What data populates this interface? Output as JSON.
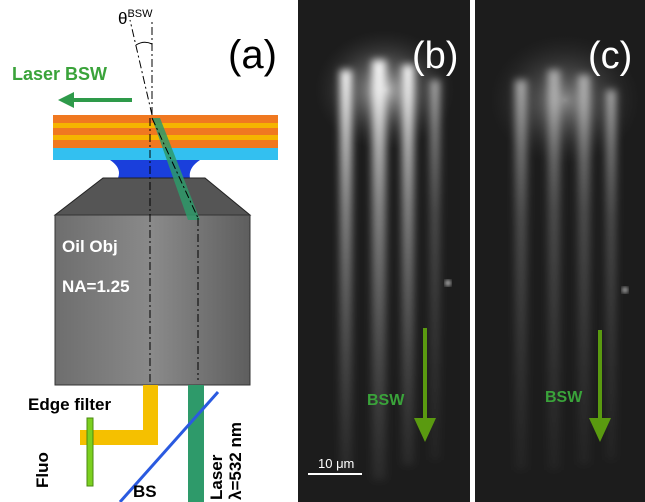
{
  "panel_a": {
    "label": "(a)",
    "angle": {
      "symbol": "θ",
      "superscript": "BSW"
    },
    "laser_bsw": "Laser BSW",
    "objective": {
      "name": "Oil Obj",
      "na": "NA=1.25"
    },
    "edge_filter": "Edge filter",
    "fluo": "Fluo",
    "bs": "BS",
    "laser": {
      "name": "Laser",
      "wavelength": "λ=532 nm"
    }
  },
  "panel_b": {
    "label": "(b)",
    "arrow_label": "BSW",
    "scale_bar": "10 μm"
  },
  "panel_c": {
    "label": "(c)",
    "arrow_label": "BSW"
  }
}
